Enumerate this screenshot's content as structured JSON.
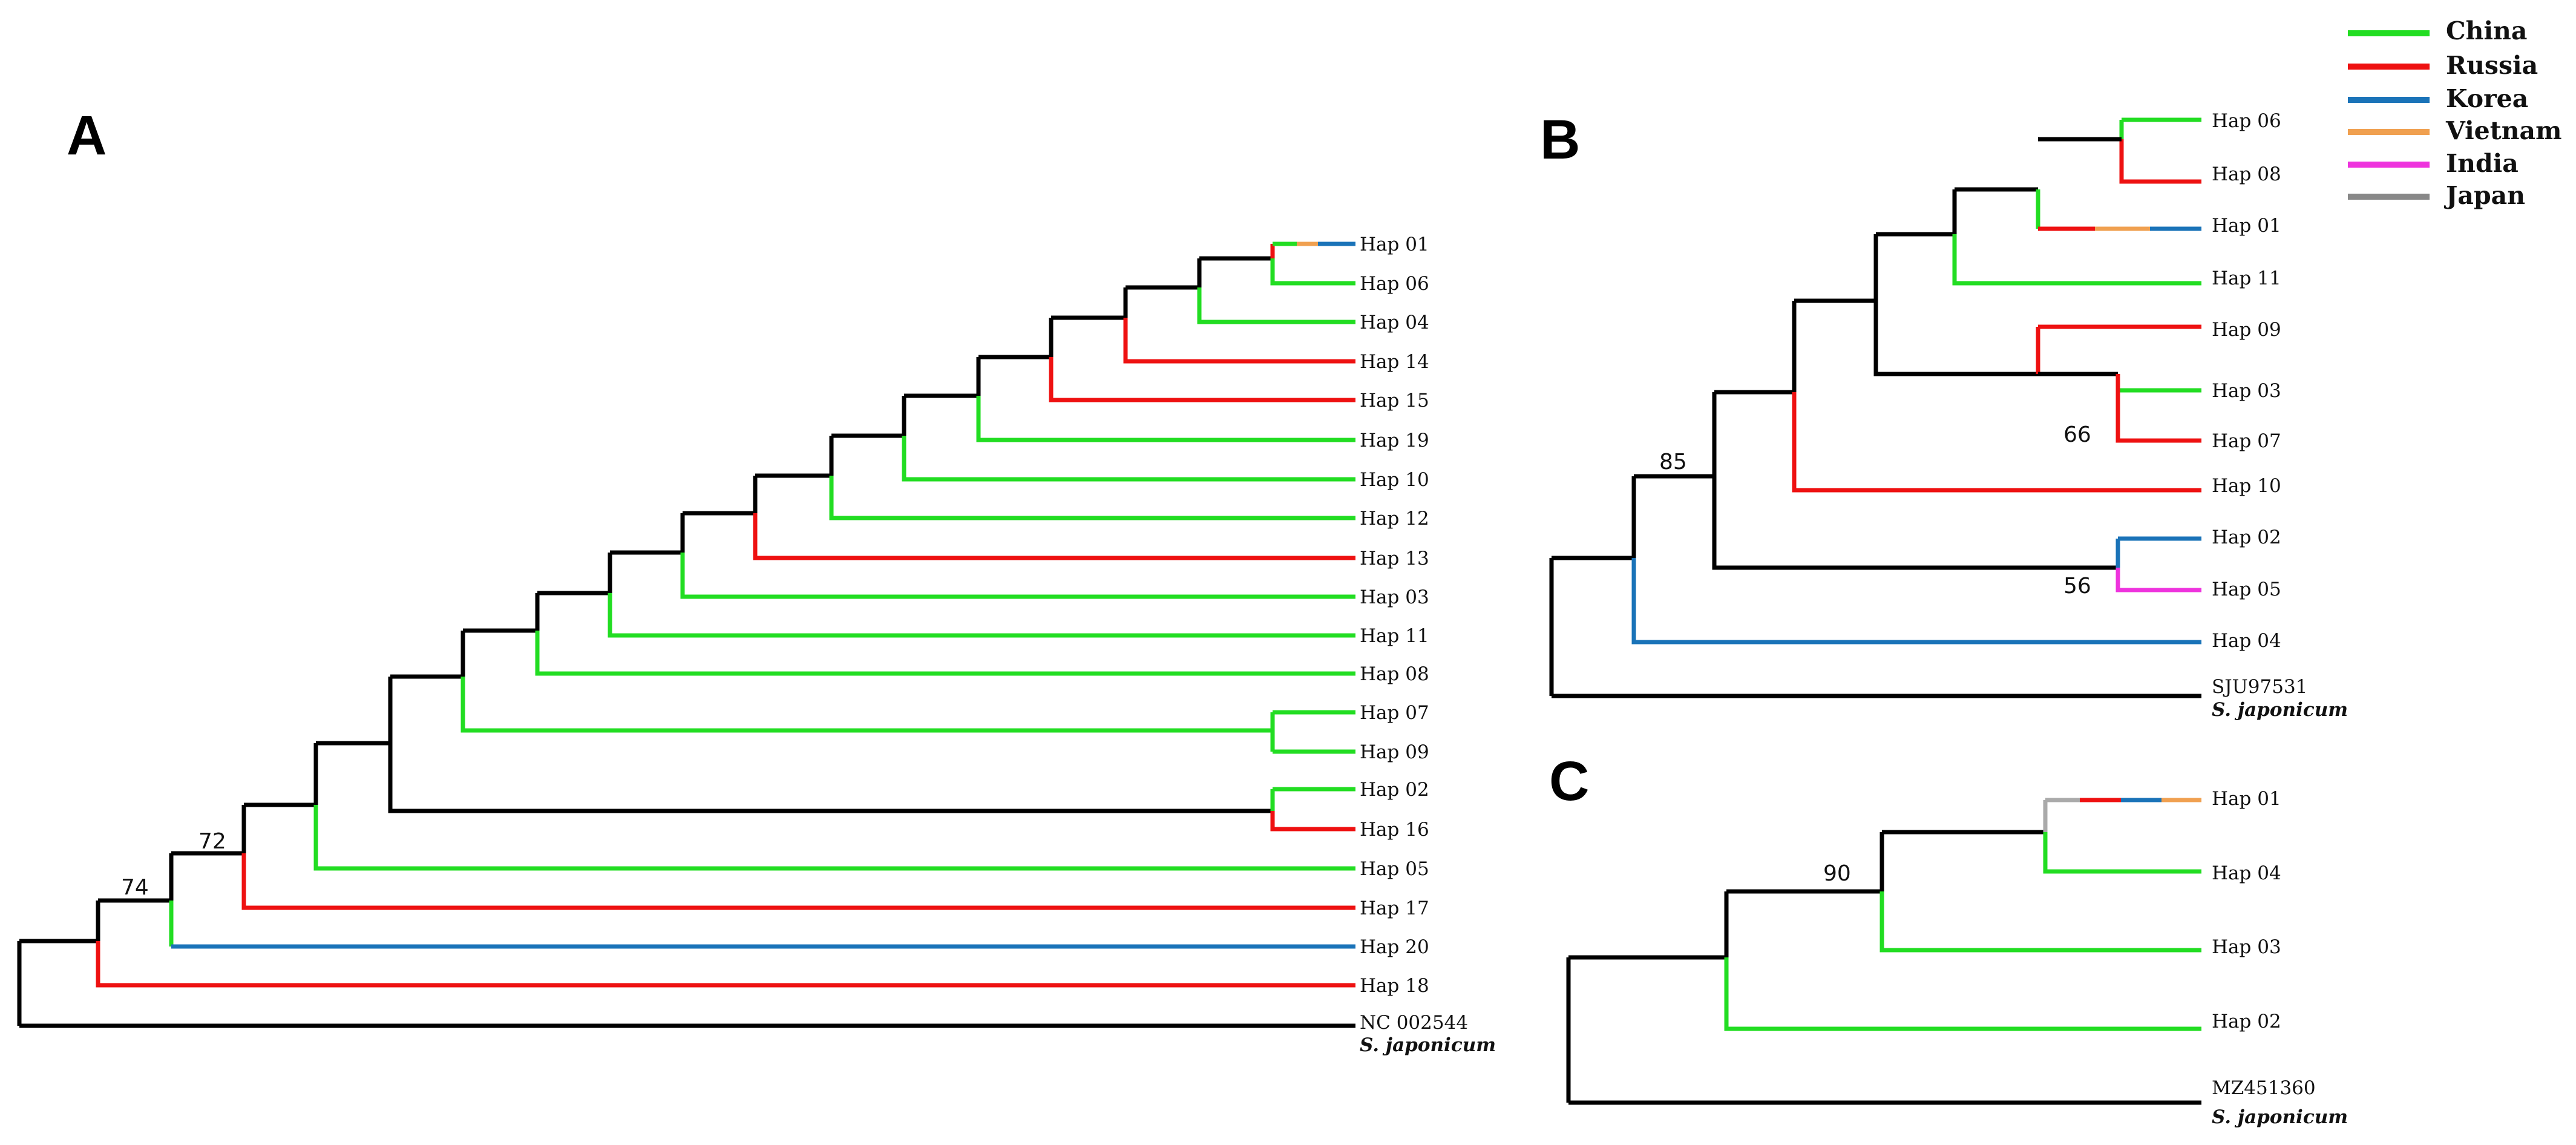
{
  "colors": {
    "black": "#000000",
    "China": "#22dd22",
    "Russia": "#ee1111",
    "Korea": "#1a73b8",
    "Vietnam": "#f0a050",
    "India": "#ee33dd",
    "Japan": "#888888"
  },
  "legend": [
    {
      "label": "China",
      "color": "#22dd22"
    },
    {
      "label": "Russia",
      "color": "#ee1111"
    },
    {
      "label": "Korea",
      "color": "#1a73b8"
    },
    {
      "label": "Vietnam",
      "color": "#f0a050"
    },
    {
      "label": "India",
      "color": "#ee33dd"
    },
    {
      "label": "Japan",
      "color": "#888888"
    }
  ],
  "panels": [
    {
      "letter": "A",
      "supports": [
        "74",
        "72"
      ],
      "tips": [
        "Hap 01",
        "Hap 06",
        "Hap 04",
        "Hap 14",
        "Hap 15",
        "Hap 19",
        "Hap 10",
        "Hap 12",
        "Hap 13",
        "Hap 03",
        "Hap 11",
        "Hap 08",
        "Hap 07",
        "Hap 09",
        "Hap 02",
        "Hap 16",
        "Hap 05",
        "Hap 17",
        "Hap 20",
        "Hap 18",
        "NC 002544"
      ],
      "outgroup_species": "S. japonicum"
    },
    {
      "letter": "B",
      "supports": [
        "85",
        "66",
        "56"
      ],
      "tips": [
        "Hap 06",
        "Hap 08",
        "Hap 01",
        "Hap 11",
        "Hap 09",
        "Hap 03",
        "Hap 07",
        "Hap 10",
        "Hap 02",
        "Hap 05",
        "Hap 04",
        "SJU97531"
      ],
      "outgroup_species": "S. japonicum"
    },
    {
      "letter": "C",
      "supports": [
        "90"
      ],
      "tips": [
        "Hap 01",
        "Hap 04",
        "Hap 03",
        "Hap 02",
        "MZ451360"
      ],
      "outgroup_species": "S. japonicum"
    }
  ]
}
